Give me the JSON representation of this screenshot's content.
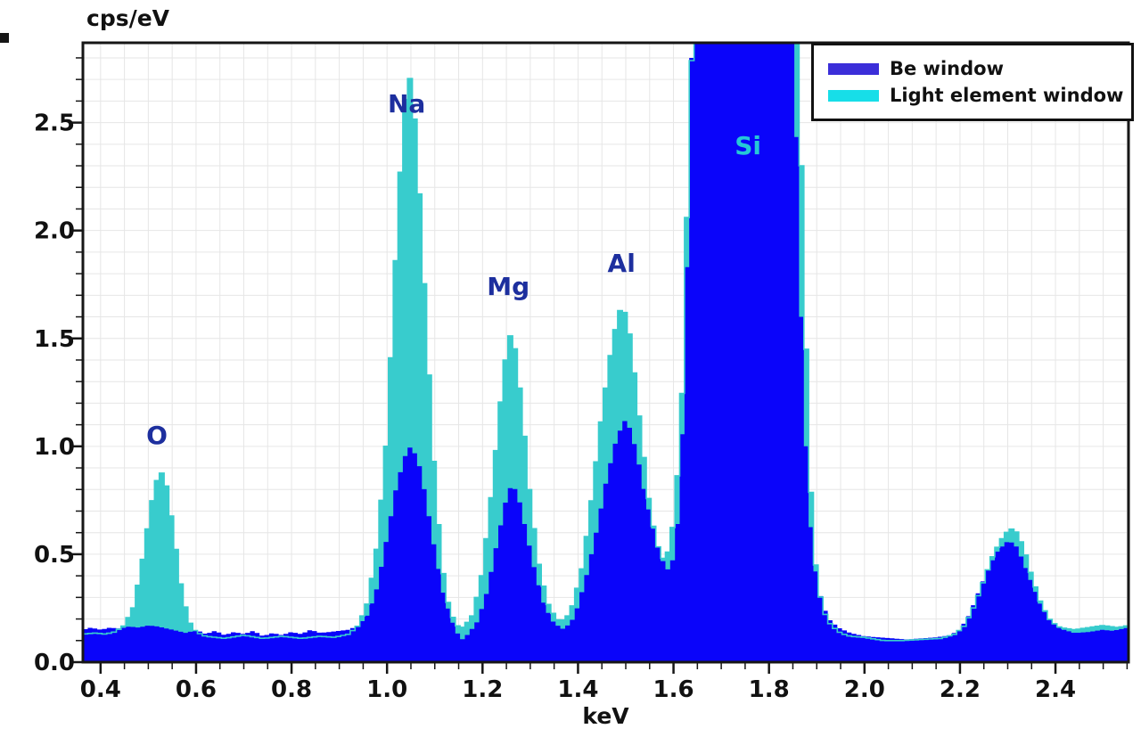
{
  "chart_data": {
    "type": "area",
    "subtype": "step-histogram-spectrum",
    "title": "cps/eV",
    "xlabel": "keV",
    "ylabel": "cps/eV",
    "xlim": [
      0.363,
      2.553
    ],
    "ylim": [
      0,
      2.87
    ],
    "bin_width_keV": 0.01,
    "grid": {
      "on": true,
      "x_step": 0.05,
      "y_step": 0.1,
      "color": "#e6e6e6"
    },
    "x_tick_labels": [
      "0.4",
      "0.6",
      "0.8",
      "1.0",
      "1.2",
      "1.4",
      "1.6",
      "1.8",
      "2.0",
      "2.2",
      "2.4"
    ],
    "x_minor_tick_step": 0.05,
    "y_tick_labels": [
      "0.0",
      "0.5",
      "1.0",
      "1.5",
      "2.0",
      "2.5"
    ],
    "y_minor_tick_step": 0.1,
    "legend_position": "top-right",
    "series": [
      {
        "name": "Light element window",
        "color": "#38cccd",
        "legend_color": "#17dee8",
        "points": [
          [
            0.363,
            0.13
          ],
          [
            0.39,
            0.135
          ],
          [
            0.41,
            0.13
          ],
          [
            0.43,
            0.14
          ],
          [
            0.45,
            0.17
          ],
          [
            0.47,
            0.26
          ],
          [
            0.49,
            0.5
          ],
          [
            0.505,
            0.72
          ],
          [
            0.52,
            0.86
          ],
          [
            0.53,
            0.88
          ],
          [
            0.54,
            0.8
          ],
          [
            0.555,
            0.57
          ],
          [
            0.57,
            0.33
          ],
          [
            0.585,
            0.19
          ],
          [
            0.6,
            0.14
          ],
          [
            0.62,
            0.12
          ],
          [
            0.66,
            0.11
          ],
          [
            0.7,
            0.125
          ],
          [
            0.74,
            0.11
          ],
          [
            0.78,
            0.12
          ],
          [
            0.82,
            0.11
          ],
          [
            0.86,
            0.12
          ],
          [
            0.89,
            0.115
          ],
          [
            0.92,
            0.13
          ],
          [
            0.94,
            0.17
          ],
          [
            0.96,
            0.28
          ],
          [
            0.98,
            0.55
          ],
          [
            1.0,
            1.05
          ],
          [
            1.02,
            1.95
          ],
          [
            1.035,
            2.55
          ],
          [
            1.045,
            2.74
          ],
          [
            1.055,
            2.62
          ],
          [
            1.07,
            2.1
          ],
          [
            1.085,
            1.45
          ],
          [
            1.1,
            0.85
          ],
          [
            1.115,
            0.45
          ],
          [
            1.13,
            0.25
          ],
          [
            1.145,
            0.17
          ],
          [
            1.16,
            0.16
          ],
          [
            1.18,
            0.22
          ],
          [
            1.2,
            0.42
          ],
          [
            1.22,
            0.8
          ],
          [
            1.24,
            1.25
          ],
          [
            1.255,
            1.53
          ],
          [
            1.27,
            1.44
          ],
          [
            1.285,
            1.12
          ],
          [
            1.3,
            0.75
          ],
          [
            1.32,
            0.42
          ],
          [
            1.34,
            0.25
          ],
          [
            1.36,
            0.19
          ],
          [
            1.375,
            0.2
          ],
          [
            1.39,
            0.27
          ],
          [
            1.41,
            0.45
          ],
          [
            1.43,
            0.78
          ],
          [
            1.45,
            1.15
          ],
          [
            1.47,
            1.45
          ],
          [
            1.485,
            1.62
          ],
          [
            1.495,
            1.65
          ],
          [
            1.51,
            1.5
          ],
          [
            1.53,
            1.1
          ],
          [
            1.55,
            0.72
          ],
          [
            1.565,
            0.55
          ],
          [
            1.58,
            0.47
          ],
          [
            1.59,
            0.52
          ],
          [
            1.6,
            0.65
          ],
          [
            1.615,
            1.05
          ],
          [
            1.625,
            1.7
          ],
          [
            1.632,
            2.54
          ],
          [
            1.64,
            2.87
          ],
          [
            1.7,
            3.0
          ],
          [
            1.8,
            3.0
          ],
          [
            1.845,
            3.0
          ],
          [
            1.858,
            3.0
          ],
          [
            1.862,
            2.65
          ],
          [
            1.868,
            2.3
          ],
          [
            1.873,
            1.9
          ],
          [
            1.878,
            1.45
          ],
          [
            1.884,
            1.0
          ],
          [
            1.89,
            0.68
          ],
          [
            1.898,
            0.45
          ],
          [
            1.906,
            0.32
          ],
          [
            1.916,
            0.23
          ],
          [
            1.93,
            0.17
          ],
          [
            1.95,
            0.135
          ],
          [
            1.97,
            0.12
          ],
          [
            2.0,
            0.115
          ],
          [
            2.04,
            0.1
          ],
          [
            2.08,
            0.1
          ],
          [
            2.12,
            0.105
          ],
          [
            2.16,
            0.11
          ],
          [
            2.19,
            0.13
          ],
          [
            2.21,
            0.17
          ],
          [
            2.23,
            0.26
          ],
          [
            2.25,
            0.38
          ],
          [
            2.27,
            0.5
          ],
          [
            2.29,
            0.58
          ],
          [
            2.305,
            0.62
          ],
          [
            2.32,
            0.6
          ],
          [
            2.335,
            0.52
          ],
          [
            2.35,
            0.4
          ],
          [
            2.37,
            0.27
          ],
          [
            2.39,
            0.19
          ],
          [
            2.41,
            0.16
          ],
          [
            2.44,
            0.15
          ],
          [
            2.47,
            0.16
          ],
          [
            2.5,
            0.17
          ],
          [
            2.53,
            0.16
          ],
          [
            2.553,
            0.17
          ]
        ]
      },
      {
        "name": "Be window",
        "color": "#0a04fa",
        "legend_color": "#3b2ed9",
        "points": [
          [
            0.363,
            0.15
          ],
          [
            0.38,
            0.16
          ],
          [
            0.4,
            0.15
          ],
          [
            0.42,
            0.16
          ],
          [
            0.44,
            0.155
          ],
          [
            0.46,
            0.165
          ],
          [
            0.48,
            0.16
          ],
          [
            0.5,
            0.17
          ],
          [
            0.52,
            0.165
          ],
          [
            0.54,
            0.155
          ],
          [
            0.56,
            0.145
          ],
          [
            0.58,
            0.135
          ],
          [
            0.6,
            0.15
          ],
          [
            0.62,
            0.13
          ],
          [
            0.64,
            0.145
          ],
          [
            0.66,
            0.125
          ],
          [
            0.68,
            0.14
          ],
          [
            0.7,
            0.13
          ],
          [
            0.72,
            0.145
          ],
          [
            0.74,
            0.12
          ],
          [
            0.76,
            0.135
          ],
          [
            0.78,
            0.125
          ],
          [
            0.8,
            0.14
          ],
          [
            0.82,
            0.13
          ],
          [
            0.84,
            0.15
          ],
          [
            0.86,
            0.135
          ],
          [
            0.88,
            0.14
          ],
          [
            0.9,
            0.145
          ],
          [
            0.92,
            0.15
          ],
          [
            0.94,
            0.17
          ],
          [
            0.96,
            0.22
          ],
          [
            0.98,
            0.35
          ],
          [
            1.0,
            0.58
          ],
          [
            1.02,
            0.82
          ],
          [
            1.04,
            0.97
          ],
          [
            1.05,
            1.0
          ],
          [
            1.065,
            0.94
          ],
          [
            1.08,
            0.78
          ],
          [
            1.1,
            0.52
          ],
          [
            1.12,
            0.3
          ],
          [
            1.14,
            0.17
          ],
          [
            1.155,
            0.1
          ],
          [
            1.17,
            0.13
          ],
          [
            1.19,
            0.19
          ],
          [
            1.21,
            0.33
          ],
          [
            1.23,
            0.55
          ],
          [
            1.25,
            0.76
          ],
          [
            1.262,
            0.83
          ],
          [
            1.275,
            0.77
          ],
          [
            1.29,
            0.62
          ],
          [
            1.31,
            0.42
          ],
          [
            1.33,
            0.26
          ],
          [
            1.35,
            0.18
          ],
          [
            1.368,
            0.155
          ],
          [
            1.385,
            0.18
          ],
          [
            1.4,
            0.26
          ],
          [
            1.42,
            0.42
          ],
          [
            1.44,
            0.62
          ],
          [
            1.46,
            0.85
          ],
          [
            1.48,
            1.03
          ],
          [
            1.497,
            1.12
          ],
          [
            1.51,
            1.08
          ],
          [
            1.525,
            0.95
          ],
          [
            1.54,
            0.78
          ],
          [
            1.56,
            0.6
          ],
          [
            1.575,
            0.48
          ],
          [
            1.588,
            0.43
          ],
          [
            1.6,
            0.48
          ],
          [
            1.61,
            0.68
          ],
          [
            1.62,
            1.15
          ],
          [
            1.63,
            2.0
          ],
          [
            1.638,
            2.8
          ],
          [
            1.645,
            3.0
          ],
          [
            1.75,
            3.0
          ],
          [
            1.852,
            3.0
          ],
          [
            1.856,
            2.6
          ],
          [
            1.862,
            2.1
          ],
          [
            1.868,
            1.6
          ],
          [
            1.874,
            1.2
          ],
          [
            1.88,
            0.9
          ],
          [
            1.887,
            0.65
          ],
          [
            1.894,
            0.48
          ],
          [
            1.902,
            0.36
          ],
          [
            1.912,
            0.27
          ],
          [
            1.925,
            0.2
          ],
          [
            1.945,
            0.16
          ],
          [
            1.97,
            0.135
          ],
          [
            2.0,
            0.12
          ],
          [
            2.03,
            0.115
          ],
          [
            2.06,
            0.11
          ],
          [
            2.09,
            0.105
          ],
          [
            2.12,
            0.11
          ],
          [
            2.15,
            0.115
          ],
          [
            2.18,
            0.125
          ],
          [
            2.2,
            0.15
          ],
          [
            2.22,
            0.22
          ],
          [
            2.24,
            0.33
          ],
          [
            2.26,
            0.44
          ],
          [
            2.28,
            0.52
          ],
          [
            2.3,
            0.56
          ],
          [
            2.315,
            0.55
          ],
          [
            2.33,
            0.48
          ],
          [
            2.35,
            0.37
          ],
          [
            2.37,
            0.26
          ],
          [
            2.39,
            0.19
          ],
          [
            2.41,
            0.155
          ],
          [
            2.44,
            0.135
          ],
          [
            2.47,
            0.14
          ],
          [
            2.5,
            0.15
          ],
          [
            2.52,
            0.145
          ],
          [
            2.553,
            0.16
          ]
        ]
      }
    ],
    "peak_labels": [
      {
        "text": "O",
        "x": 0.518,
        "y": 1.048,
        "color": "#1d2f9e"
      },
      {
        "text": "Na",
        "x": 1.041,
        "y": 2.587,
        "color": "#1d2f9e"
      },
      {
        "text": "Mg",
        "x": 1.254,
        "y": 1.737,
        "color": "#1d2f9e"
      },
      {
        "text": "Al",
        "x": 1.491,
        "y": 1.844,
        "color": "#1d2f9e"
      },
      {
        "text": "Si",
        "x": 1.756,
        "y": 2.389,
        "color": "#25c8d7"
      }
    ]
  },
  "legend": {
    "items": [
      {
        "label": "Be window",
        "color": "#3b2ed9"
      },
      {
        "label": "Light element window",
        "color": "#17dee8"
      }
    ]
  }
}
